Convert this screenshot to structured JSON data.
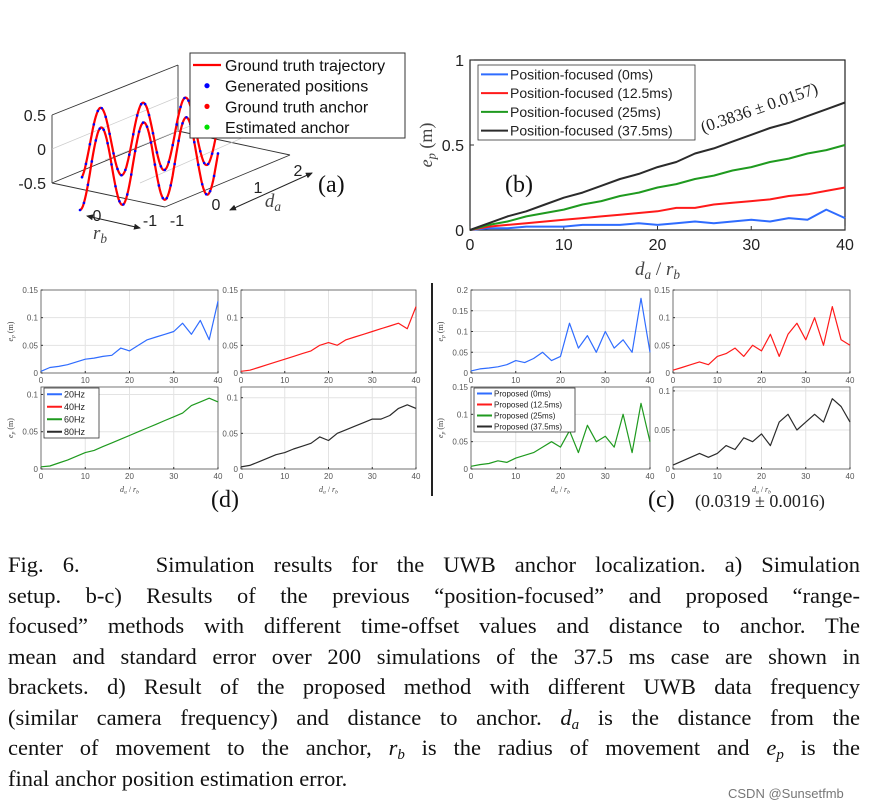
{
  "colors": {
    "blue": "#2f6cff",
    "red": "#ff1a1a",
    "green": "#1f9a1f",
    "black": "#2b2b2b",
    "grid": "#e3e3e3",
    "traj": "#ff0000",
    "dot_blue": "#0000ff",
    "dot_green": "#00e000"
  },
  "panel_a": {
    "label": "(a)",
    "legend": [
      {
        "label": "Ground truth trajectory",
        "marker": "line",
        "color": "#ff0000"
      },
      {
        "label": "Generated positions",
        "marker": "dot",
        "color": "#0000ff"
      },
      {
        "label": "Ground truth anchor",
        "marker": "dot",
        "color": "#ff0000"
      },
      {
        "label": "Estimated anchor",
        "marker": "dot",
        "color": "#00e000"
      }
    ],
    "z_ticks": [
      "0.5",
      "0",
      "-0.5"
    ],
    "rb_ticks": [
      "0",
      "-1"
    ],
    "da_ticks": [
      "-1",
      "0",
      "1",
      "2"
    ],
    "da_label": "d",
    "da_sub": "a",
    "rb_label": "r",
    "rb_sub": "b"
  },
  "chart_data": [
    {
      "id": "b",
      "type": "line",
      "label": "(b)",
      "ylabel": "e",
      "ylabel_sub": "p",
      "ylabel_unit": " (m)",
      "xlabel": "d",
      "xlabel_sub": "a",
      "xlabel_mid": " / ",
      "xlabel2": "r",
      "xlabel2_sub": "b",
      "xlim": [
        0,
        40
      ],
      "ylim": [
        0,
        1
      ],
      "xticks": [
        "0",
        "10",
        "20",
        "30",
        "40"
      ],
      "yticks": [
        "0",
        "0.5",
        "1"
      ],
      "grid": false,
      "legend_position": "top-left",
      "annotation": "(0.3836 ± 0.0157)",
      "x": [
        0,
        2,
        4,
        6,
        8,
        10,
        12,
        14,
        16,
        18,
        20,
        22,
        24,
        26,
        28,
        30,
        32,
        34,
        36,
        38,
        40
      ],
      "series": [
        {
          "name": "Position-focused (0ms)",
          "color": "#2f6cff",
          "values": [
            0,
            0.01,
            0.01,
            0.02,
            0.02,
            0.02,
            0.03,
            0.03,
            0.03,
            0.04,
            0.03,
            0.04,
            0.05,
            0.04,
            0.05,
            0.06,
            0.05,
            0.07,
            0.06,
            0.12,
            0.07
          ]
        },
        {
          "name": "Position-focused (12.5ms)",
          "color": "#ff1a1a",
          "values": [
            0,
            0.02,
            0.03,
            0.04,
            0.05,
            0.06,
            0.07,
            0.08,
            0.09,
            0.1,
            0.11,
            0.13,
            0.13,
            0.15,
            0.16,
            0.17,
            0.18,
            0.2,
            0.21,
            0.23,
            0.25
          ]
        },
        {
          "name": "Position-focused (25ms)",
          "color": "#1f9a1f",
          "values": [
            0,
            0.03,
            0.05,
            0.08,
            0.1,
            0.12,
            0.15,
            0.17,
            0.2,
            0.22,
            0.25,
            0.27,
            0.3,
            0.32,
            0.35,
            0.37,
            0.4,
            0.42,
            0.45,
            0.47,
            0.5
          ]
        },
        {
          "name": "Position-focused (37.5ms)",
          "color": "#2b2b2b",
          "values": [
            0,
            0.04,
            0.08,
            0.11,
            0.15,
            0.19,
            0.22,
            0.26,
            0.3,
            0.33,
            0.37,
            0.4,
            0.45,
            0.48,
            0.52,
            0.56,
            0.6,
            0.63,
            0.67,
            0.71,
            0.75
          ]
        }
      ]
    },
    {
      "id": "d1",
      "type": "line",
      "xlim": [
        0,
        40
      ],
      "ylim": [
        0,
        0.15
      ],
      "xticks": [
        "0",
        "10",
        "20",
        "30",
        "40"
      ],
      "yticks": [
        "0",
        "0.05",
        "0.1",
        "0.15"
      ],
      "ylabel": "e",
      "ylabel_sub": "p",
      "ylabel_unit": " (m)",
      "grid": true,
      "x": [
        0,
        2,
        4,
        6,
        8,
        10,
        12,
        14,
        16,
        18,
        20,
        22,
        24,
        26,
        28,
        30,
        32,
        34,
        36,
        38,
        40
      ],
      "series": [
        {
          "color": "#2f6cff",
          "values": [
            0.003,
            0.01,
            0.012,
            0.015,
            0.02,
            0.025,
            0.027,
            0.03,
            0.032,
            0.045,
            0.04,
            0.05,
            0.06,
            0.065,
            0.07,
            0.075,
            0.09,
            0.07,
            0.095,
            0.06,
            0.13
          ]
        }
      ]
    },
    {
      "id": "d2",
      "type": "line",
      "xlim": [
        0,
        40
      ],
      "ylim": [
        0,
        0.15
      ],
      "xticks": [
        "0",
        "10",
        "20",
        "30",
        "40"
      ],
      "yticks": [
        "0",
        "0.05",
        "0.1",
        "0.15"
      ],
      "grid": true,
      "x": [
        0,
        2,
        4,
        6,
        8,
        10,
        12,
        14,
        16,
        18,
        20,
        22,
        24,
        26,
        28,
        30,
        32,
        34,
        36,
        38,
        40
      ],
      "series": [
        {
          "color": "#ff1a1a",
          "values": [
            0.003,
            0.005,
            0.01,
            0.015,
            0.02,
            0.025,
            0.03,
            0.035,
            0.04,
            0.05,
            0.055,
            0.05,
            0.06,
            0.065,
            0.07,
            0.075,
            0.08,
            0.085,
            0.09,
            0.08,
            0.12
          ]
        }
      ]
    },
    {
      "id": "d3",
      "type": "line",
      "xlim": [
        0,
        40
      ],
      "ylim": [
        0,
        0.11
      ],
      "xticks": [
        "0",
        "10",
        "20",
        "30",
        "40"
      ],
      "yticks": [
        "0",
        "0.05",
        "0.1"
      ],
      "ylabel": "e",
      "ylabel_sub": "p",
      "ylabel_unit": " (m)",
      "xlabel": "d",
      "xlabel_sub": "a",
      "xlabel_mid": " / ",
      "xlabel2": "r",
      "xlabel2_sub": "b",
      "grid": true,
      "legend_position": "top-left",
      "x": [
        0,
        2,
        4,
        6,
        8,
        10,
        12,
        14,
        16,
        18,
        20,
        22,
        24,
        26,
        28,
        30,
        32,
        34,
        36,
        38,
        40
      ],
      "legend": [
        {
          "name": "20Hz",
          "color": "#2f6cff"
        },
        {
          "name": "40Hz",
          "color": "#ff1a1a"
        },
        {
          "name": "60Hz",
          "color": "#1f9a1f"
        },
        {
          "name": "80Hz",
          "color": "#2b2b2b"
        }
      ],
      "series": [
        {
          "color": "#1f9a1f",
          "values": [
            0.003,
            0.004,
            0.008,
            0.012,
            0.017,
            0.022,
            0.025,
            0.03,
            0.035,
            0.04,
            0.045,
            0.05,
            0.055,
            0.06,
            0.065,
            0.07,
            0.075,
            0.085,
            0.09,
            0.095,
            0.09
          ]
        }
      ]
    },
    {
      "id": "d4",
      "type": "line",
      "xlim": [
        0,
        40
      ],
      "ylim": [
        0,
        0.115
      ],
      "xticks": [
        "0",
        "10",
        "20",
        "30",
        "40"
      ],
      "yticks": [
        "0",
        "0.05",
        "0.1"
      ],
      "xlabel": "d",
      "xlabel_sub": "a",
      "xlabel_mid": " / ",
      "xlabel2": "r",
      "xlabel2_sub": "b",
      "grid": true,
      "x": [
        0,
        2,
        4,
        6,
        8,
        10,
        12,
        14,
        16,
        18,
        20,
        22,
        24,
        26,
        28,
        30,
        32,
        34,
        36,
        38,
        40
      ],
      "series": [
        {
          "color": "#2b2b2b",
          "values": [
            0.003,
            0.005,
            0.01,
            0.015,
            0.02,
            0.023,
            0.028,
            0.032,
            0.036,
            0.045,
            0.04,
            0.05,
            0.055,
            0.06,
            0.065,
            0.07,
            0.07,
            0.075,
            0.085,
            0.09,
            0.085
          ]
        }
      ]
    },
    {
      "id": "c1",
      "type": "line",
      "xlim": [
        0,
        40
      ],
      "ylim": [
        0,
        0.2
      ],
      "xticks": [
        "0",
        "10",
        "20",
        "30",
        "40"
      ],
      "yticks": [
        "0",
        "0.05",
        "0.1",
        "0.15",
        "0.2"
      ],
      "ylabel": "e",
      "ylabel_sub": "p",
      "ylabel_unit": " (m)",
      "grid": true,
      "x": [
        0,
        2,
        4,
        6,
        8,
        10,
        12,
        14,
        16,
        18,
        20,
        22,
        24,
        26,
        28,
        30,
        32,
        34,
        36,
        38,
        40
      ],
      "series": [
        {
          "color": "#2f6cff",
          "values": [
            0.005,
            0.01,
            0.012,
            0.015,
            0.02,
            0.03,
            0.025,
            0.035,
            0.05,
            0.03,
            0.04,
            0.12,
            0.06,
            0.09,
            0.05,
            0.1,
            0.06,
            0.08,
            0.05,
            0.18,
            0.05
          ]
        }
      ]
    },
    {
      "id": "c2",
      "type": "line",
      "xlim": [
        0,
        40
      ],
      "ylim": [
        0,
        0.15
      ],
      "xticks": [
        "0",
        "10",
        "20",
        "30",
        "40"
      ],
      "yticks": [
        "0",
        "0.05",
        "0.1",
        "0.15"
      ],
      "grid": true,
      "x": [
        0,
        2,
        4,
        6,
        8,
        10,
        12,
        14,
        16,
        18,
        20,
        22,
        24,
        26,
        28,
        30,
        32,
        34,
        36,
        38,
        40
      ],
      "series": [
        {
          "color": "#ff1a1a",
          "values": [
            0.005,
            0.01,
            0.015,
            0.02,
            0.015,
            0.03,
            0.035,
            0.045,
            0.03,
            0.05,
            0.04,
            0.07,
            0.03,
            0.07,
            0.09,
            0.06,
            0.1,
            0.05,
            0.12,
            0.06,
            0.05
          ]
        }
      ]
    },
    {
      "id": "c3",
      "type": "line",
      "xlim": [
        0,
        40
      ],
      "ylim": [
        0,
        0.15
      ],
      "xticks": [
        "0",
        "10",
        "20",
        "30",
        "40"
      ],
      "yticks": [
        "0",
        "0.05",
        "0.1",
        "0.15"
      ],
      "ylabel": "e",
      "ylabel_sub": "p",
      "ylabel_unit": " (m)",
      "xlabel": "d",
      "xlabel_sub": "a",
      "xlabel_mid": " / ",
      "xlabel2": "r",
      "xlabel2_sub": "b",
      "grid": true,
      "legend_position": "top-left",
      "x": [
        0,
        2,
        4,
        6,
        8,
        10,
        12,
        14,
        16,
        18,
        20,
        22,
        24,
        26,
        28,
        30,
        32,
        34,
        36,
        38,
        40
      ],
      "legend": [
        {
          "name": "Proposed (0ms)",
          "color": "#2f6cff"
        },
        {
          "name": "Proposed (12.5ms)",
          "color": "#ff1a1a"
        },
        {
          "name": "Proposed (25ms)",
          "color": "#1f9a1f"
        },
        {
          "name": "Proposed (37.5ms)",
          "color": "#2b2b2b"
        }
      ],
      "series": [
        {
          "color": "#1f9a1f",
          "values": [
            0.005,
            0.008,
            0.01,
            0.015,
            0.012,
            0.02,
            0.025,
            0.03,
            0.04,
            0.05,
            0.04,
            0.07,
            0.03,
            0.08,
            0.05,
            0.06,
            0.04,
            0.1,
            0.03,
            0.12,
            0.05
          ]
        }
      ]
    },
    {
      "id": "c4",
      "type": "line",
      "xlim": [
        0,
        40
      ],
      "ylim": [
        0,
        0.105
      ],
      "xticks": [
        "0",
        "10",
        "20",
        "30",
        "40"
      ],
      "yticks": [
        "0",
        "0.05",
        "0.1"
      ],
      "xlabel": "d",
      "xlabel_sub": "a",
      "xlabel_mid": " / ",
      "xlabel2": "r",
      "xlabel2_sub": "b",
      "grid": true,
      "x": [
        0,
        2,
        4,
        6,
        8,
        10,
        12,
        14,
        16,
        18,
        20,
        22,
        24,
        26,
        28,
        30,
        32,
        34,
        36,
        38,
        40
      ],
      "series": [
        {
          "color": "#2b2b2b",
          "values": [
            0.005,
            0.01,
            0.015,
            0.02,
            0.015,
            0.02,
            0.03,
            0.025,
            0.04,
            0.035,
            0.045,
            0.03,
            0.06,
            0.07,
            0.05,
            0.06,
            0.07,
            0.06,
            0.09,
            0.08,
            0.06
          ]
        }
      ]
    }
  ],
  "panel_labels": {
    "d": "(d)",
    "c": "(c)",
    "c_annotation": "(0.0319 ± 0.0016)"
  },
  "caption": {
    "lines": [
      [
        {
          "t": "Fig. 6.    Simulation results for the UWB anchor localization. a) Simulation"
        }
      ],
      [
        {
          "t": "setup. b-c) Results of the previous “position-focused” and proposed “range-"
        }
      ],
      [
        {
          "t": "focused” methods with different time-offset values and distance to anchor. The"
        }
      ],
      [
        {
          "t": "mean and standard error over 200 simulations of the 37.5 ms case are shown in"
        }
      ],
      [
        {
          "t": "brackets. d) Result of the proposed method with different UWB data frequency"
        }
      ],
      [
        {
          "t": "(similar camera frequency) and distance to anchor. "
        },
        {
          "t": "d",
          "m": true
        },
        {
          "t": "a",
          "s": true
        },
        {
          "t": " is the distance from the"
        }
      ],
      [
        {
          "t": "center of movement to the anchor, "
        },
        {
          "t": "r",
          "m": true
        },
        {
          "t": "b",
          "s": true
        },
        {
          "t": " is the radius of movement and "
        },
        {
          "t": "e",
          "m": true
        },
        {
          "t": "p",
          "s": true
        },
        {
          "t": " is the"
        }
      ],
      [
        {
          "t": "final anchor position estimation error."
        }
      ]
    ]
  },
  "watermark": "CSDN @Sunsetfmb"
}
